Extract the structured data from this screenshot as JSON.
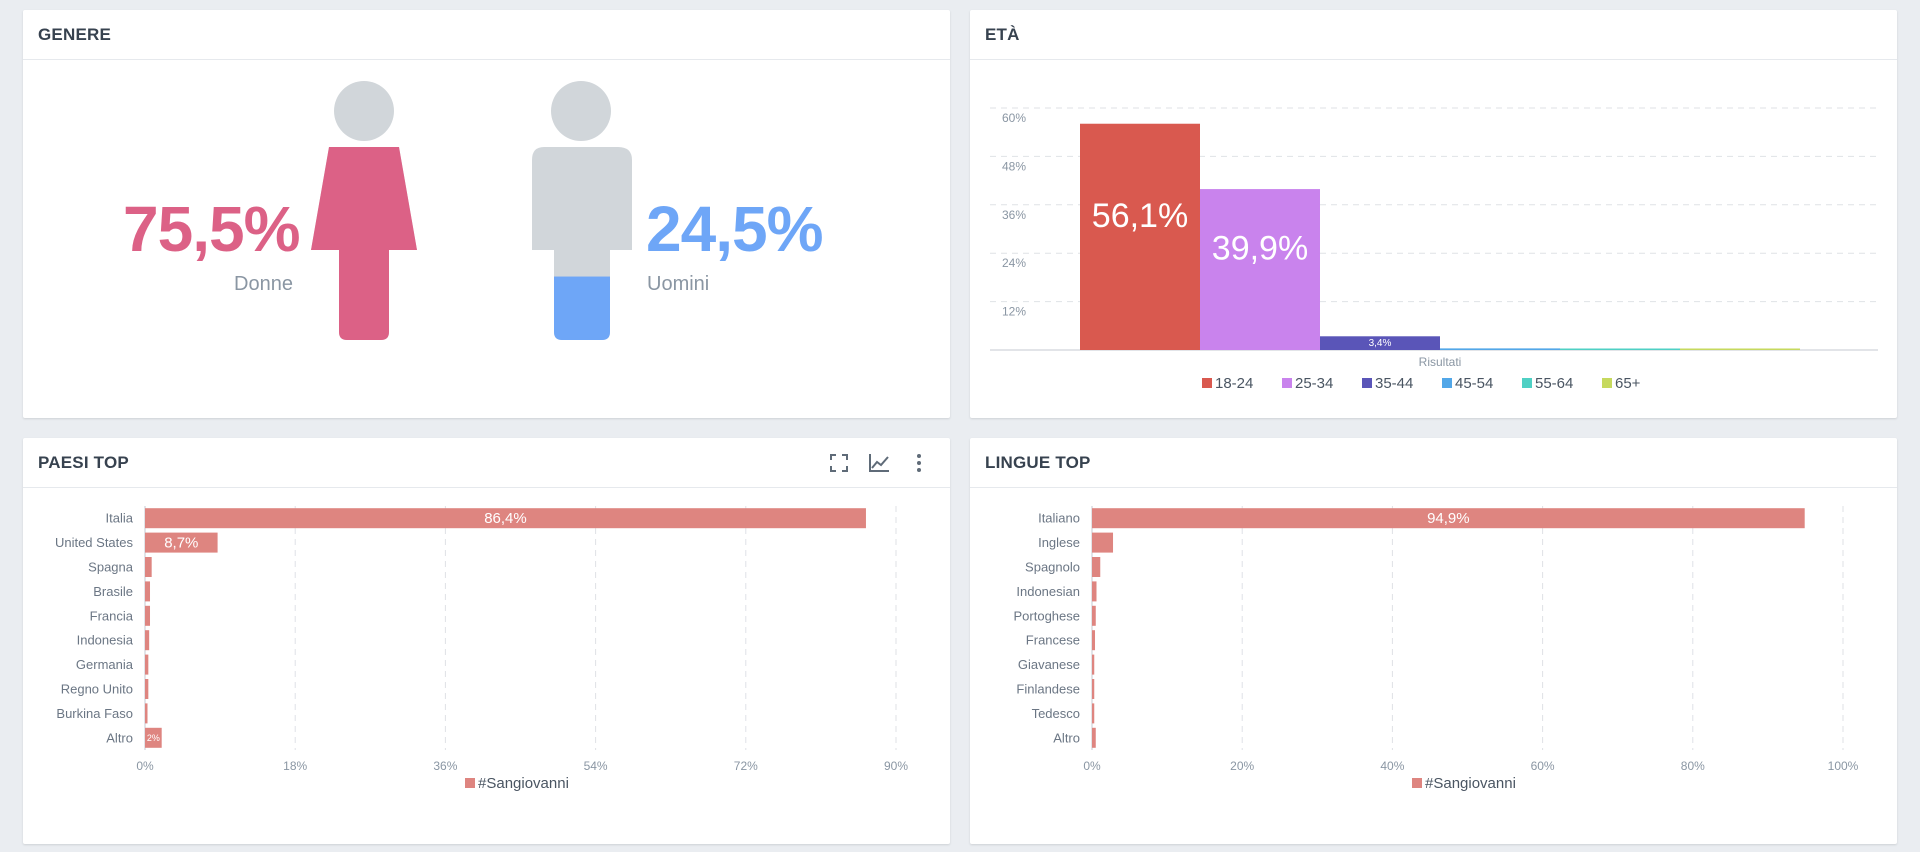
{
  "colors": {
    "female": "#dc6186",
    "male": "#6ea6f7",
    "figure_gray": "#d1d6da",
    "bar_primary": "#de8580"
  },
  "gender": {
    "title": "GENERE",
    "female_pct": "75,5%",
    "female_label": "Donne",
    "female_share": 0.755,
    "male_pct": "24,5%",
    "male_label": "Uomini",
    "male_share": 0.245
  },
  "age": {
    "title": "ETÀ",
    "chart_data": {
      "type": "bar",
      "x_category": "Risultati",
      "ylim": [
        0,
        60
      ],
      "y_ticks": [
        "12%",
        "24%",
        "36%",
        "48%",
        "60%"
      ],
      "y_tick_values": [
        12,
        24,
        36,
        48,
        60
      ],
      "grid": true,
      "legend": "bottom",
      "series": [
        {
          "name": "18-24",
          "value": 56.1,
          "label": "56,1%",
          "color": "#d9594f"
        },
        {
          "name": "25-34",
          "value": 39.9,
          "label": "39,9%",
          "color": "#c983ed"
        },
        {
          "name": "35-44",
          "value": 3.4,
          "label": "3,4%",
          "color": "#5a55b8"
        },
        {
          "name": "45-54",
          "value": 0.4,
          "label": "",
          "color": "#52a7e8"
        },
        {
          "name": "55-64",
          "value": 0.2,
          "label": "",
          "color": "#4fd0c4"
        },
        {
          "name": "65+",
          "value": 0.2,
          "label": "",
          "color": "#c6d95e"
        }
      ]
    }
  },
  "countries": {
    "title": "PAESI TOP",
    "chart_data": {
      "type": "bar",
      "orientation": "horizontal",
      "xlim": [
        0,
        90
      ],
      "x_ticks": [
        "0%",
        "18%",
        "36%",
        "54%",
        "72%",
        "90%"
      ],
      "x_tick_values": [
        0,
        18,
        36,
        54,
        72,
        90
      ],
      "grid": true,
      "legend": "bottom",
      "categories": [
        "Italia",
        "United States",
        "Spagna",
        "Brasile",
        "Francia",
        "Indonesia",
        "Germania",
        "Regno Unito",
        "Burkina Faso",
        "Altro"
      ],
      "series": [
        {
          "name": "#Sangiovanni",
          "values": [
            86.4,
            8.7,
            0.8,
            0.6,
            0.6,
            0.5,
            0.4,
            0.4,
            0.3,
            2
          ],
          "labels": [
            "86,4%",
            "8,7%",
            "",
            "",
            "",
            "",
            "",
            "",
            "",
            "2%"
          ]
        }
      ]
    }
  },
  "languages": {
    "title": "LINGUE TOP",
    "chart_data": {
      "type": "bar",
      "orientation": "horizontal",
      "xlim": [
        0,
        100
      ],
      "x_ticks": [
        "0%",
        "20%",
        "40%",
        "60%",
        "80%",
        "100%"
      ],
      "x_tick_values": [
        0,
        20,
        40,
        60,
        80,
        100
      ],
      "grid": true,
      "legend": "bottom",
      "categories": [
        "Italiano",
        "Inglese",
        "Spagnolo",
        "Indonesian",
        "Portoghese",
        "Francese",
        "Giavanese",
        "Finlandese",
        "Tedesco",
        "Altro"
      ],
      "series": [
        {
          "name": "#Sangiovanni",
          "values": [
            94.9,
            2.8,
            1.1,
            0.6,
            0.5,
            0.4,
            0.3,
            0.3,
            0.3,
            0.5
          ],
          "labels": [
            "94,9%",
            "",
            "",
            "",
            "",
            "",
            "",
            "",
            "",
            ""
          ]
        }
      ]
    }
  },
  "icons": {
    "expand": "expand-icon",
    "line_chart": "line-chart-icon",
    "more": "more-vertical-icon"
  }
}
